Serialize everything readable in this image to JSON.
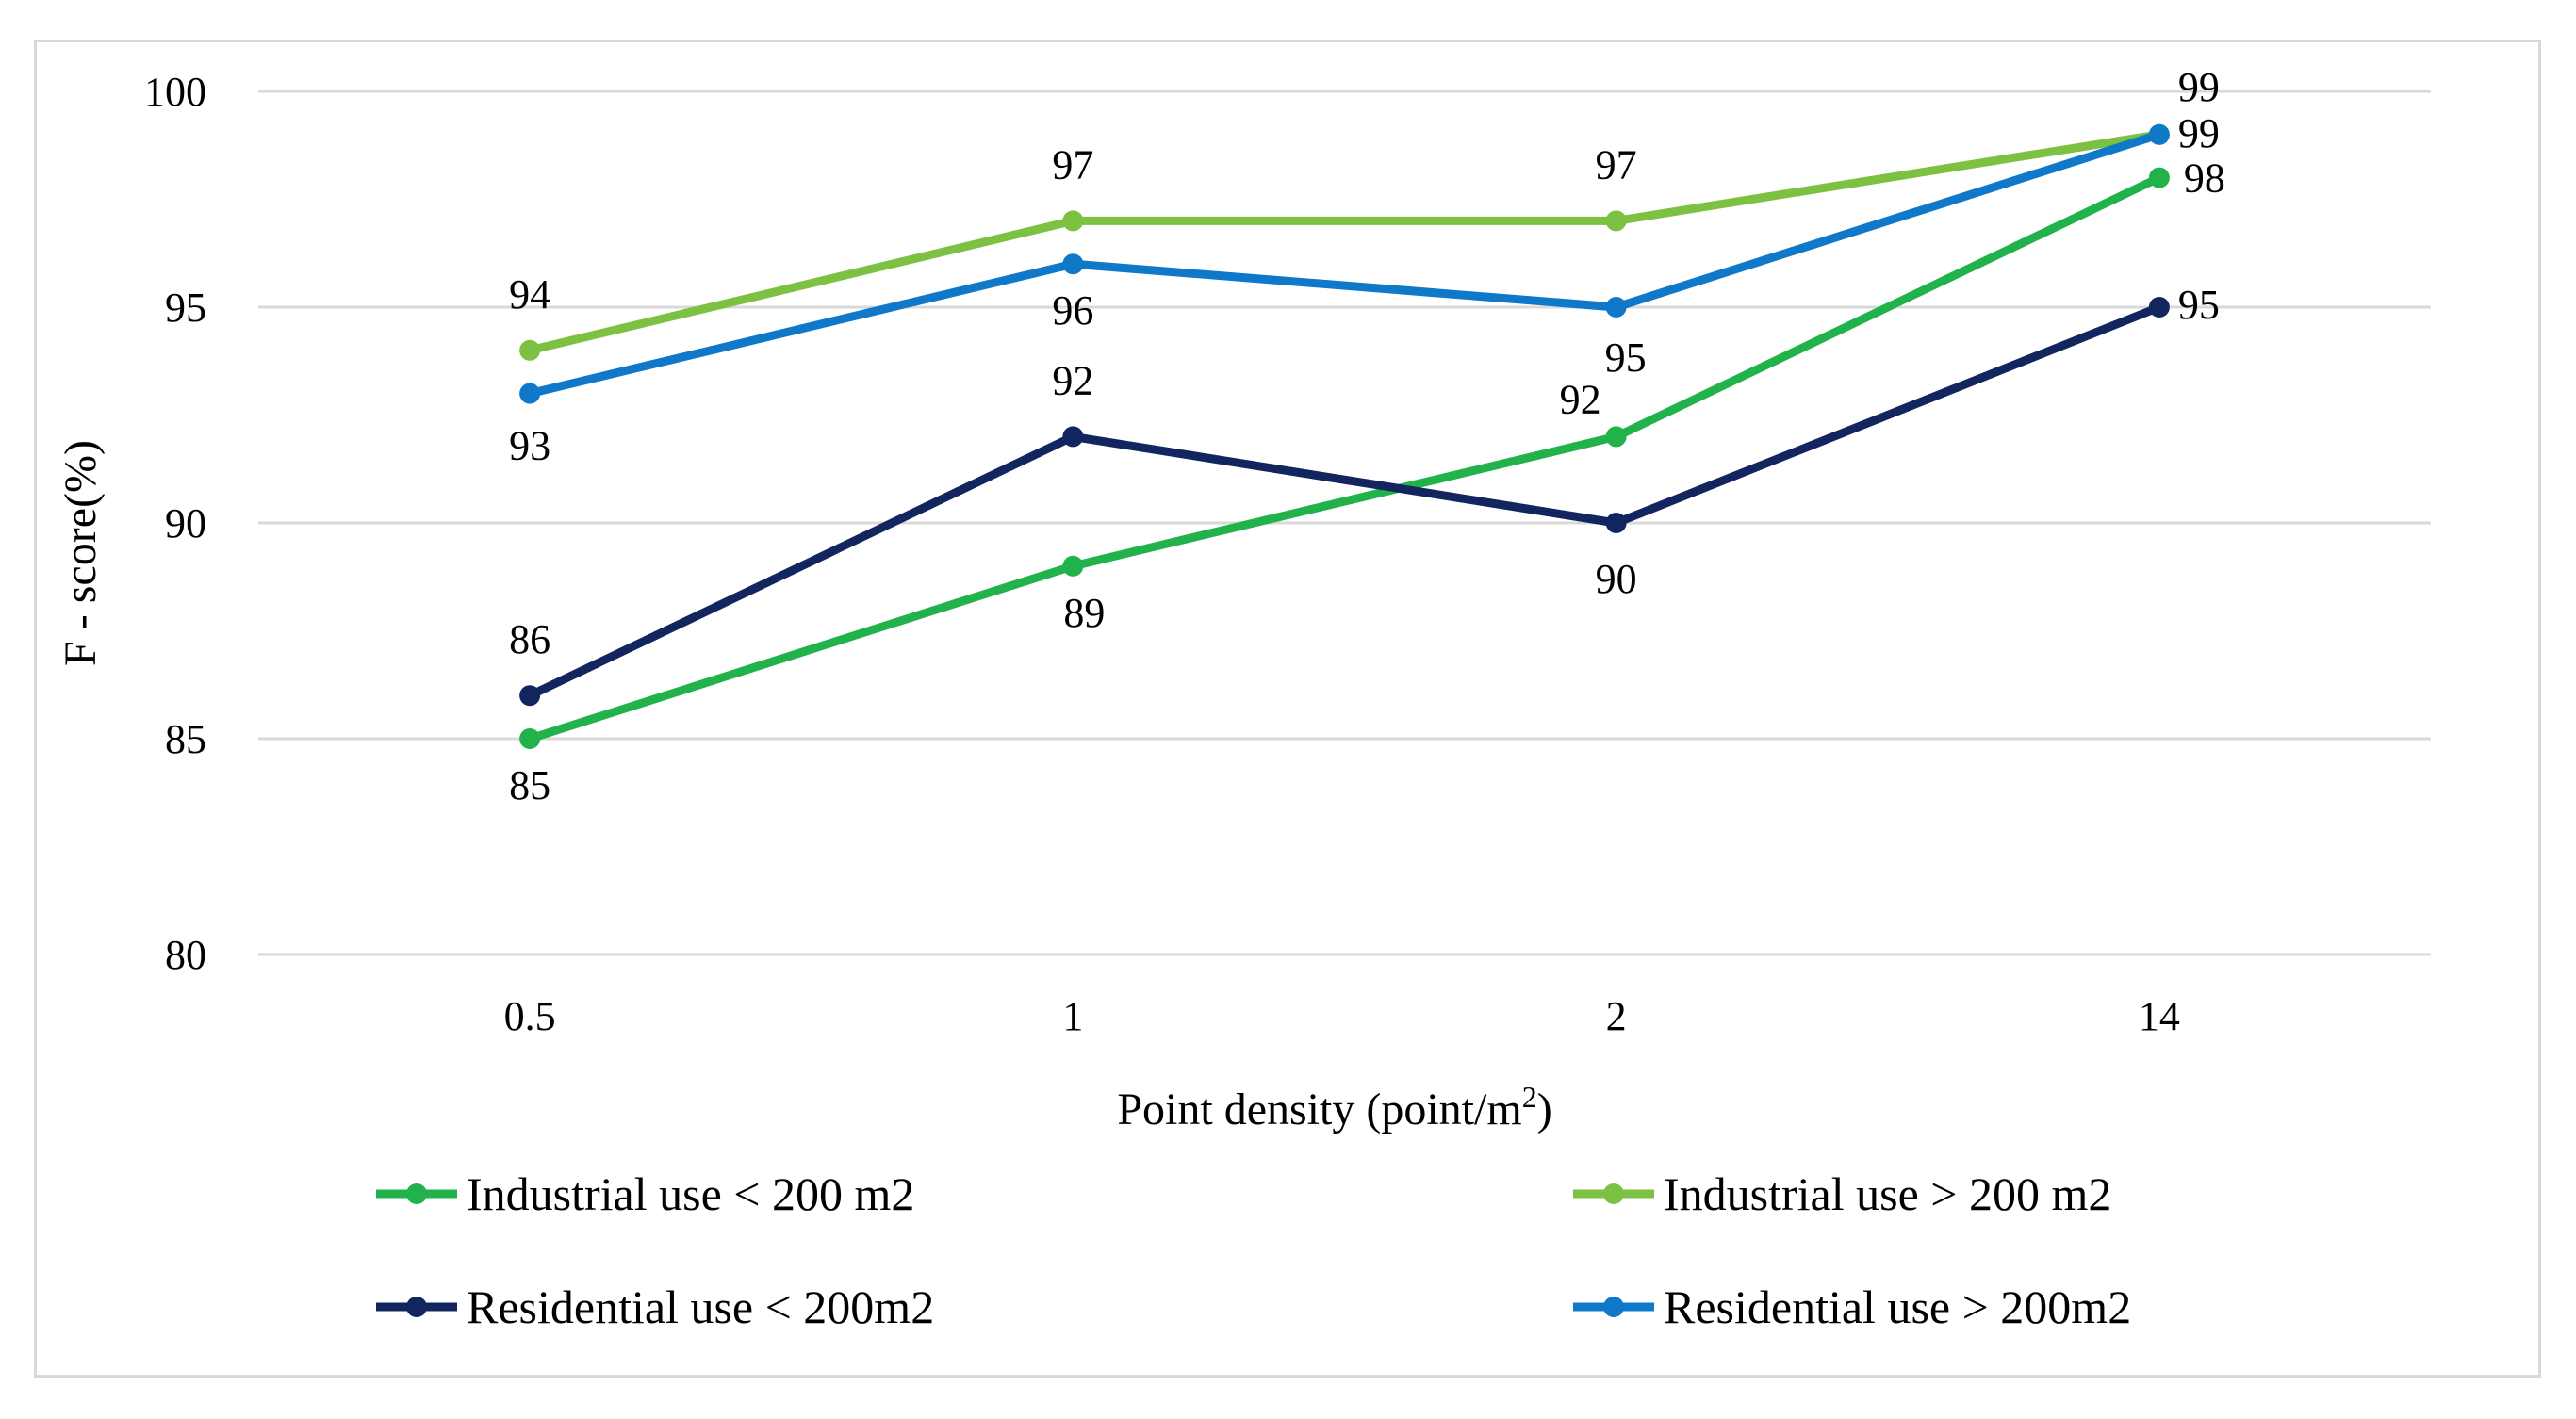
{
  "chart_data": {
    "type": "line",
    "categories": [
      "0.5",
      "1",
      "2",
      "14"
    ],
    "xlabel": "Point density (point/m",
    "xlabel_superscript": "2",
    "xlabel_suffix": ")",
    "ylabel": "F - score(%)",
    "ylim": [
      80,
      100
    ],
    "yticks": [
      80,
      85,
      90,
      95,
      100
    ],
    "grid": true,
    "legend_position": "bottom",
    "series": [
      {
        "name": "Industrial use < 200 m2",
        "values": [
          85,
          89,
          92,
          98
        ],
        "color": "#21b24b"
      },
      {
        "name": "Industrial use > 200 m2",
        "values": [
          94,
          97,
          97,
          99
        ],
        "color": "#7dc142"
      },
      {
        "name": "Residential use < 200m2",
        "values": [
          86,
          92,
          90,
          95
        ],
        "color": "#13255f"
      },
      {
        "name": "Residential use > 200m2",
        "values": [
          93,
          96,
          95,
          99
        ],
        "color": "#0f78c8"
      }
    ]
  }
}
